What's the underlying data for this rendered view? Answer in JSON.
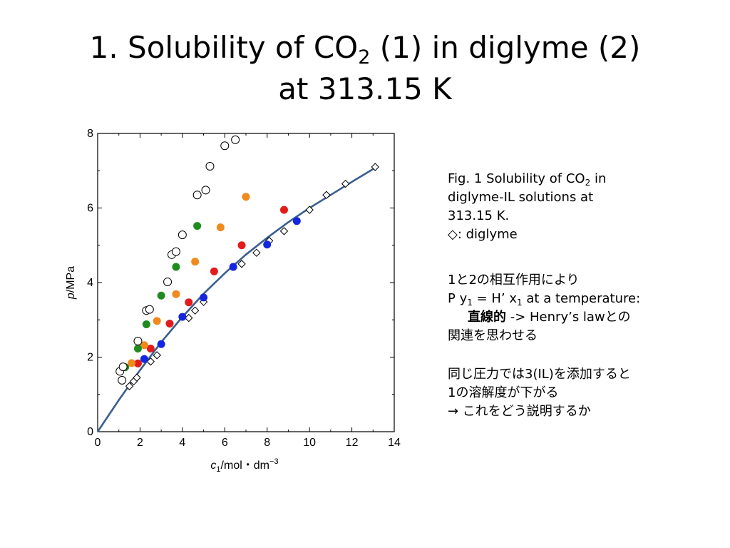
{
  "title": {
    "line1_pre": "1. Solubility of CO",
    "line1_sub": "2",
    "line1_post": " (1) in diglyme (2)",
    "line2": "at 313.15 K"
  },
  "caption": {
    "line1_pre": "Fig. 1 Solubility of CO",
    "line1_sub": "2",
    "line1_post": " in",
    "line2": "diglyme-IL solutions at",
    "line3": "313.15 K.",
    "line4": "◇: diglyme"
  },
  "notes": {
    "n1": "1と2の相互作用により",
    "n2_a": "P y",
    "n2_sub1": "1",
    "n2_b": " = H’ x",
    "n2_sub2": "1",
    "n2_c": "   at a temperature:",
    "n3_bold": "直線的",
    "n3_rest": " ->  Henry’s lawとの",
    "n4": "関連を思わせる",
    "n5": "同じ圧力では3(IL)を添加すると",
    "n6": "1の溶解度が下がる",
    "n7": "→  これをどう説明するか"
  },
  "chart_data": {
    "type": "scatter",
    "xlabel_var": "c",
    "xlabel_sub": "1",
    "xlabel_unit": "/mol・dm",
    "xlabel_exp": "−3",
    "ylabel_var": "p",
    "ylabel_unit": "/MPa",
    "xlim": [
      0,
      14
    ],
    "ylim": [
      0,
      8
    ],
    "xticks": [
      "0",
      "2",
      "4",
      "6",
      "8",
      "10",
      "12",
      "14"
    ],
    "yticks": [
      "0",
      "2",
      "4",
      "6",
      "8"
    ],
    "grid": false,
    "colors": {
      "curve": "#3a5f8f",
      "blue": "#1526e0",
      "red": "#e21b1b",
      "orange": "#f08a1c",
      "green": "#1f8c1f"
    },
    "series": [
      {
        "marker": "diamond",
        "points": [
          [
            1.5,
            1.22
          ],
          [
            1.7,
            1.35
          ],
          [
            1.85,
            1.45
          ],
          [
            2.5,
            1.88
          ],
          [
            2.8,
            2.05
          ],
          [
            4.3,
            3.05
          ],
          [
            4.6,
            3.25
          ],
          [
            5.0,
            3.48
          ],
          [
            6.8,
            4.5
          ],
          [
            7.5,
            4.8
          ],
          [
            8.1,
            5.12
          ],
          [
            8.8,
            5.38
          ],
          [
            10.0,
            5.95
          ],
          [
            10.8,
            6.35
          ],
          [
            11.7,
            6.65
          ],
          [
            13.1,
            7.1
          ]
        ]
      },
      {
        "marker": "circle-filled",
        "color": "blue",
        "points": [
          [
            2.2,
            1.95
          ],
          [
            3.0,
            2.35
          ],
          [
            4.0,
            3.08
          ],
          [
            5.0,
            3.6
          ],
          [
            6.4,
            4.42
          ],
          [
            8.0,
            5.02
          ],
          [
            9.4,
            5.65
          ]
        ]
      },
      {
        "marker": "circle-filled",
        "color": "red",
        "points": [
          [
            1.9,
            1.83
          ],
          [
            2.5,
            2.23
          ],
          [
            3.4,
            2.9
          ],
          [
            4.3,
            3.47
          ],
          [
            5.5,
            4.3
          ],
          [
            6.8,
            5.0
          ],
          [
            8.8,
            5.95
          ]
        ]
      },
      {
        "marker": "circle-filled",
        "color": "orange",
        "points": [
          [
            1.6,
            1.84
          ],
          [
            2.2,
            2.32
          ],
          [
            2.8,
            2.97
          ],
          [
            3.7,
            3.69
          ],
          [
            4.6,
            4.56
          ],
          [
            5.8,
            5.48
          ],
          [
            7.0,
            6.3
          ]
        ]
      },
      {
        "marker": "circle-filled",
        "color": "green",
        "points": [
          [
            1.3,
            1.73
          ],
          [
            1.9,
            2.23
          ],
          [
            2.3,
            2.88
          ],
          [
            3.0,
            3.65
          ],
          [
            3.7,
            4.42
          ],
          [
            4.7,
            5.52
          ]
        ]
      },
      {
        "marker": "circle-open",
        "points": [
          [
            1.05,
            1.62
          ],
          [
            1.15,
            1.38
          ],
          [
            1.2,
            1.74
          ],
          [
            1.9,
            2.43
          ],
          [
            2.3,
            3.25
          ],
          [
            2.45,
            3.28
          ],
          [
            3.3,
            4.02
          ],
          [
            3.5,
            4.75
          ],
          [
            3.7,
            4.83
          ],
          [
            4.0,
            5.28
          ],
          [
            4.7,
            6.35
          ],
          [
            5.1,
            6.48
          ],
          [
            5.3,
            7.12
          ],
          [
            6.0,
            7.67
          ],
          [
            6.5,
            7.83
          ]
        ]
      }
    ],
    "fit_curve": [
      [
        0,
        0
      ],
      [
        1,
        0.85
      ],
      [
        2,
        1.65
      ],
      [
        3,
        2.4
      ],
      [
        4,
        3.08
      ],
      [
        5,
        3.7
      ],
      [
        6,
        4.25
      ],
      [
        7,
        4.75
      ],
      [
        8,
        5.2
      ],
      [
        9,
        5.62
      ],
      [
        10,
        6.0
      ],
      [
        11,
        6.35
      ],
      [
        12,
        6.7
      ],
      [
        13.1,
        7.08
      ]
    ]
  }
}
